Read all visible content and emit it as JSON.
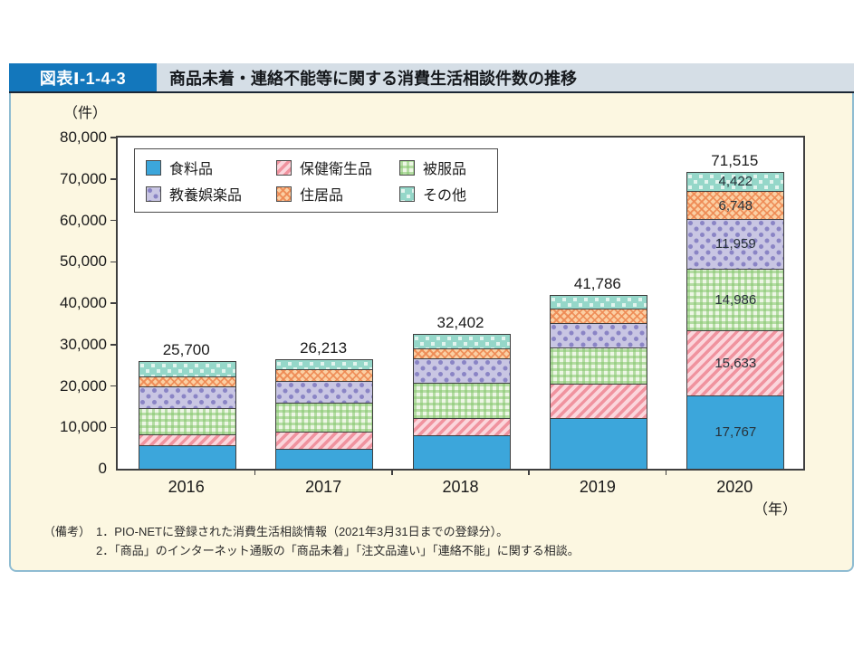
{
  "figure": {
    "label": "図表Ⅰ-1-4-3",
    "title": "商品未着・連絡不能等に関する消費生活相談件数の推移"
  },
  "unit_label": "（件）",
  "year_suffix": "（年）",
  "notes": {
    "heading": "（備考）",
    "items": [
      "1．PIO-NETに登録された消費生活相談情報（2021年3月31日までの登録分）。",
      "2．「商品」のインターネット通販の「商品未着」「注文品違い」「連絡不能」に関する相談。"
    ]
  },
  "chart_data": {
    "type": "bar",
    "stacked": true,
    "title": "商品未着・連絡不能等に関する消費生活相談件数の推移",
    "xlabel": "年",
    "ylabel": "件",
    "ylim": [
      0,
      80000
    ],
    "ytick_step": 10000,
    "grid": false,
    "legend_position": "top-left-inside",
    "categories": [
      "2016",
      "2017",
      "2018",
      "2019",
      "2020"
    ],
    "series": [
      {
        "name": "食料品",
        "pattern": "solid-blue",
        "color": "#3ca6db",
        "values": [
          5700,
          4800,
          8100,
          12300,
          17767
        ]
      },
      {
        "name": "保健衛生品",
        "pattern": "diagonal-pink",
        "color": "#f0939f",
        "values": [
          2600,
          4100,
          4200,
          8300,
          15633
        ]
      },
      {
        "name": "被服品",
        "pattern": "gingham-green",
        "color": "#85c66d",
        "values": [
          6300,
          7000,
          8500,
          8750,
          14986
        ]
      },
      {
        "name": "教養娯楽品",
        "pattern": "dots-purple",
        "color": "#8a84c5",
        "values": [
          5200,
          5300,
          5900,
          5900,
          11959
        ]
      },
      {
        "name": "住居品",
        "pattern": "crosshatch-orange",
        "color": "#ee8a54",
        "values": [
          2600,
          2800,
          2400,
          3500,
          6748
        ]
      },
      {
        "name": "その他",
        "pattern": "squares-teal",
        "color": "#95d7c9",
        "values": [
          3300,
          2213,
          3302,
          3036,
          4422
        ]
      }
    ],
    "totals": [
      25700,
      26213,
      32402,
      41786,
      71515
    ],
    "total_labels": [
      "25,700",
      "26,213",
      "32,402",
      "41,786",
      "71,515"
    ],
    "labeled_segments_2020": [
      "17,767",
      "15,633",
      "14,986",
      "11,959",
      "6,748",
      "4,422"
    ]
  }
}
